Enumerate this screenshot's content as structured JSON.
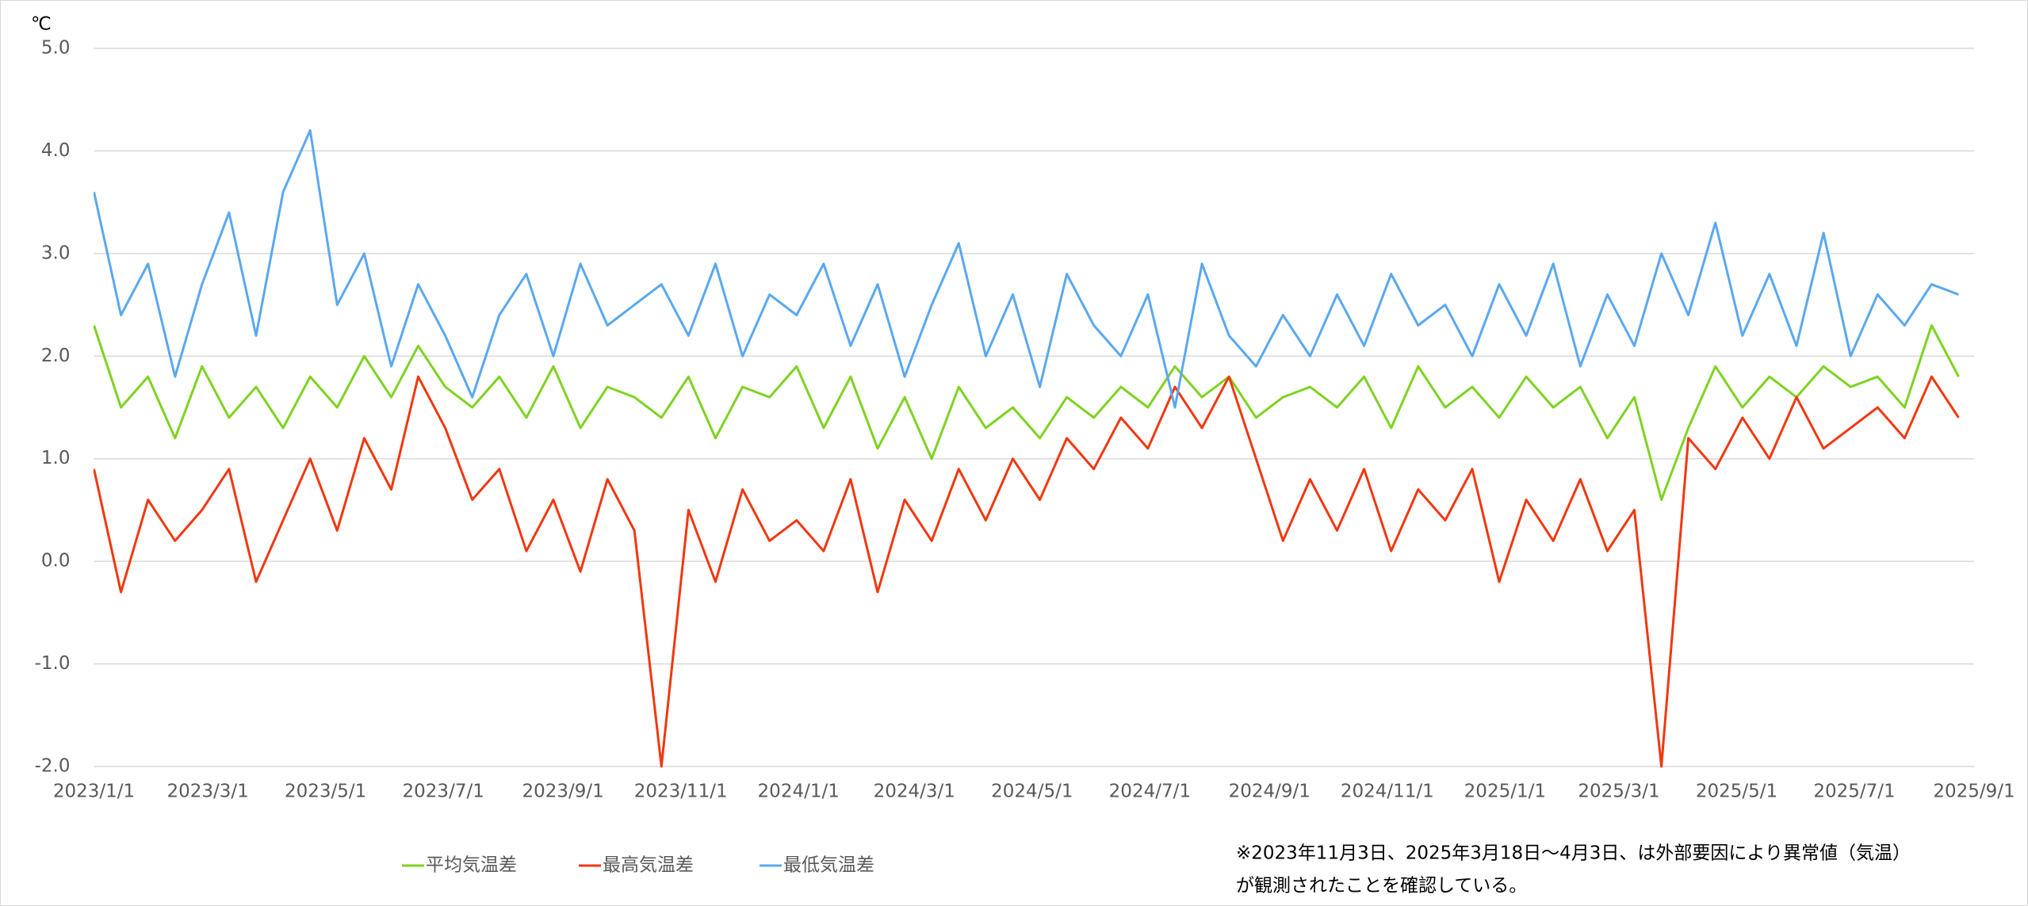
{
  "chart_data": {
    "type": "line",
    "y_label": "℃",
    "x": [
      "2023/1/1",
      "2023/1/15",
      "2023/1/29",
      "2023/2/12",
      "2023/2/26",
      "2023/3/12",
      "2023/3/26",
      "2023/4/9",
      "2023/4/23",
      "2023/5/7",
      "2023/5/21",
      "2023/6/4",
      "2023/6/18",
      "2023/7/2",
      "2023/7/16",
      "2023/7/30",
      "2023/8/13",
      "2023/8/27",
      "2023/9/10",
      "2023/9/24",
      "2023/10/8",
      "2023/10/22",
      "2023/11/5",
      "2023/11/19",
      "2023/12/3",
      "2023/12/17",
      "2023/12/31",
      "2024/1/14",
      "2024/1/28",
      "2024/2/11",
      "2024/2/25",
      "2024/3/10",
      "2024/3/24",
      "2024/4/7",
      "2024/4/21",
      "2024/5/5",
      "2024/5/19",
      "2024/6/2",
      "2024/6/16",
      "2024/6/30",
      "2024/7/14",
      "2024/7/28",
      "2024/8/11",
      "2024/8/25",
      "2024/9/8",
      "2024/9/22",
      "2024/10/6",
      "2024/10/20",
      "2024/11/3",
      "2024/11/17",
      "2024/12/1",
      "2024/12/15",
      "2024/12/29",
      "2025/1/12",
      "2025/1/26",
      "2025/2/9",
      "2025/2/23",
      "2025/3/9",
      "2025/3/23",
      "2025/4/6",
      "2025/4/20",
      "2025/5/4",
      "2025/5/18",
      "2025/6/1",
      "2025/6/15",
      "2025/6/29",
      "2025/7/13",
      "2025/7/27",
      "2025/8/10",
      "2025/8/24"
    ],
    "series": [
      {
        "name": "平均気温差",
        "color": "#7ed321",
        "values": [
          2.3,
          1.5,
          1.8,
          1.2,
          1.9,
          1.4,
          1.7,
          1.3,
          1.8,
          1.5,
          2.0,
          1.6,
          2.1,
          1.7,
          1.5,
          1.8,
          1.4,
          1.9,
          1.3,
          1.7,
          1.6,
          1.4,
          1.8,
          1.2,
          1.7,
          1.6,
          1.9,
          1.3,
          1.8,
          1.1,
          1.6,
          1.0,
          1.7,
          1.3,
          1.5,
          1.2,
          1.6,
          1.4,
          1.7,
          1.5,
          1.9,
          1.6,
          1.8,
          1.4,
          1.6,
          1.7,
          1.5,
          1.8,
          1.3,
          1.9,
          1.5,
          1.7,
          1.4,
          1.8,
          1.5,
          1.7,
          1.2,
          1.6,
          0.6,
          1.3,
          1.9,
          1.5,
          1.8,
          1.6,
          1.9,
          1.7,
          1.8,
          1.5,
          2.3,
          1.8
        ]
      },
      {
        "name": "最高気温差",
        "color": "#f0380f",
        "values": [
          0.9,
          -0.3,
          0.6,
          0.2,
          0.5,
          0.9,
          -0.2,
          0.4,
          1.0,
          0.3,
          1.2,
          0.7,
          1.8,
          1.3,
          0.6,
          0.9,
          0.1,
          0.6,
          -0.1,
          0.8,
          0.3,
          -2.0,
          0.5,
          -0.2,
          0.7,
          0.2,
          0.4,
          0.1,
          0.8,
          -0.3,
          0.6,
          0.2,
          0.9,
          0.4,
          1.0,
          0.6,
          1.2,
          0.9,
          1.4,
          1.1,
          1.7,
          1.3,
          1.8,
          1.0,
          0.2,
          0.8,
          0.3,
          0.9,
          0.1,
          0.7,
          0.4,
          0.9,
          -0.2,
          0.6,
          0.2,
          0.8,
          0.1,
          0.5,
          -2.0,
          1.2,
          0.9,
          1.4,
          1.0,
          1.6,
          1.1,
          1.3,
          1.5,
          1.2,
          1.8,
          1.4
        ]
      },
      {
        "name": "最低気温差",
        "color": "#5aa8f0",
        "values": [
          3.6,
          2.4,
          2.9,
          1.8,
          2.7,
          3.4,
          2.2,
          3.6,
          4.2,
          2.5,
          3.0,
          1.9,
          2.7,
          2.2,
          1.6,
          2.4,
          2.8,
          2.0,
          2.9,
          2.3,
          2.5,
          2.7,
          2.2,
          2.9,
          2.0,
          2.6,
          2.4,
          2.9,
          2.1,
          2.7,
          1.8,
          2.5,
          3.1,
          2.0,
          2.6,
          1.7,
          2.8,
          2.3,
          2.0,
          2.6,
          1.5,
          2.9,
          2.2,
          1.9,
          2.4,
          2.0,
          2.6,
          2.1,
          2.8,
          2.3,
          2.5,
          2.0,
          2.7,
          2.2,
          2.9,
          1.9,
          2.6,
          2.1,
          3.0,
          2.4,
          3.3,
          2.2,
          2.8,
          2.1,
          3.2,
          2.0,
          2.6,
          2.3,
          2.7,
          2.6
        ]
      }
    ],
    "ylim": [
      -2,
      5
    ],
    "yticks": [
      {
        "value": -2,
        "label": "-2.0"
      },
      {
        "value": -1,
        "label": "-1.0"
      },
      {
        "value": 0,
        "label": "0.0"
      },
      {
        "value": 1,
        "label": "1.0"
      },
      {
        "value": 2,
        "label": "2.0"
      },
      {
        "value": 3,
        "label": "3.0"
      },
      {
        "value": 4,
        "label": "4.0"
      },
      {
        "value": 5,
        "label": "5.0"
      }
    ],
    "xlim": [
      "2023/1/1",
      "2025/9/1"
    ],
    "xticks": [
      "2023/1/1",
      "2023/3/1",
      "2023/5/1",
      "2023/7/1",
      "2023/9/1",
      "2023/11/1",
      "2024/1/1",
      "2024/3/1",
      "2024/5/1",
      "2024/7/1",
      "2024/9/1",
      "2024/11/1",
      "2025/1/1",
      "2025/3/1",
      "2025/5/1",
      "2025/7/1",
      "2025/9/1"
    ],
    "grid": true,
    "legend": "bottom",
    "note": [
      "※2023年11月3日、2025年3月18日～4月3日、は外部要因により異常値（気温）",
      "が観測されたことを確認している。"
    ]
  }
}
